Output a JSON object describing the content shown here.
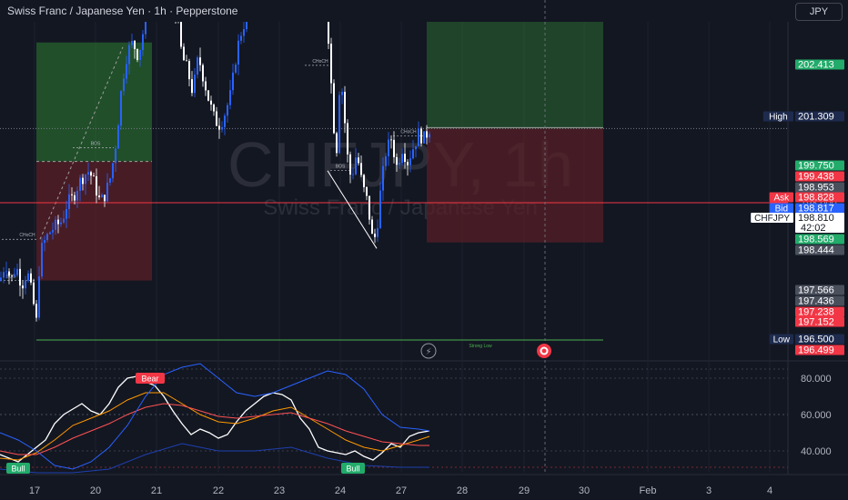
{
  "header": {
    "title": "Swiss Franc / Japanese Yen · 1h · Pepperstone",
    "currency_button": "JPY"
  },
  "watermark": {
    "symbol": "CHFJPY, 1h",
    "name": "Swiss Franc / Japanese Yen"
  },
  "colors": {
    "background": "#131722",
    "grid": "#1e222d",
    "up": "#2962ff",
    "down": "#ffffff",
    "profit_zone": "#1b5e20",
    "loss_zone": "#4a1a20",
    "red_label": "#f23645",
    "green_label": "#26a69a",
    "blue_label": "#2962ff",
    "grey_label": "#4a4f5c",
    "navy_label": "#1e2b4e"
  },
  "chart_data": [
    {
      "type": "candlestick",
      "title": "Swiss Franc / Japanese Yen · 1h · Pepperstone",
      "ylim": [
        195.65,
        203.35
      ],
      "y_ticks": [
        "203.000",
        "202.500",
        "202.000",
        "201.500",
        "201.000",
        "200.500",
        "198.000"
      ],
      "x_ticks": [
        "17",
        "20",
        "21",
        "22",
        "23",
        "24",
        "27",
        "28",
        "29",
        "30",
        "Feb",
        "3",
        "4"
      ],
      "price_path": [
        [
          0,
          197.15
        ],
        [
          6,
          197.35
        ],
        [
          12,
          197.15
        ],
        [
          18,
          197.3
        ],
        [
          24,
          197.1
        ],
        [
          30,
          197.25
        ],
        [
          36,
          196.95
        ],
        [
          40,
          196.7
        ],
        [
          44,
          197.45
        ],
        [
          50,
          197.6
        ],
        [
          56,
          197.7
        ],
        [
          62,
          197.75
        ],
        [
          68,
          197.8
        ],
        [
          74,
          198.0
        ],
        [
          80,
          198.05
        ],
        [
          86,
          198.2
        ],
        [
          92,
          198.3
        ],
        [
          98,
          198.35
        ],
        [
          104,
          198.2
        ],
        [
          110,
          198.0
        ],
        [
          116,
          198.1
        ],
        [
          122,
          198.3
        ],
        [
          128,
          198.7
        ],
        [
          134,
          199.3
        ],
        [
          140,
          199.65
        ],
        [
          146,
          199.75
        ],
        [
          152,
          199.6
        ],
        [
          158,
          199.9
        ],
        [
          164,
          200.25
        ],
        [
          170,
          200.35
        ],
        [
          176,
          200.3
        ],
        [
          182,
          200.2
        ],
        [
          188,
          200.25
        ],
        [
          194,
          200.05
        ],
        [
          200,
          199.6
        ],
        [
          206,
          199.45
        ],
        [
          212,
          199.2
        ],
        [
          218,
          199.6
        ],
        [
          224,
          199.35
        ],
        [
          230,
          199.1
        ],
        [
          236,
          198.9
        ],
        [
          242,
          198.85
        ],
        [
          248,
          199.0
        ],
        [
          254,
          199.2
        ],
        [
          260,
          199.65
        ],
        [
          266,
          199.9
        ],
        [
          272,
          200.05
        ],
        [
          278,
          200.15
        ],
        [
          284,
          200.3
        ],
        [
          290,
          200.45
        ],
        [
          296,
          200.55
        ],
        [
          302,
          200.7
        ],
        [
          308,
          200.8
        ],
        [
          314,
          200.9
        ],
        [
          320,
          200.85
        ],
        [
          326,
          200.95
        ],
        [
          332,
          201.0
        ],
        [
          335,
          201.3
        ],
        [
          338,
          200.5
        ],
        [
          342,
          200.0
        ],
        [
          346,
          200.25
        ],
        [
          350,
          199.95
        ],
        [
          356,
          200.35
        ],
        [
          362,
          199.7
        ],
        [
          366,
          198.9
        ],
        [
          370,
          198.6
        ],
        [
          374,
          199.45
        ],
        [
          378,
          199.0
        ],
        [
          382,
          198.5
        ],
        [
          386,
          198.25
        ],
        [
          392,
          198.55
        ],
        [
          398,
          198.2
        ],
        [
          404,
          198.0
        ],
        [
          410,
          197.55
        ],
        [
          414,
          197.7
        ],
        [
          418,
          198.1
        ],
        [
          424,
          198.55
        ],
        [
          430,
          198.7
        ],
        [
          436,
          198.4
        ],
        [
          442,
          198.6
        ],
        [
          448,
          198.45
        ],
        [
          454,
          198.6
        ],
        [
          460,
          198.75
        ],
        [
          466,
          198.7
        ],
        [
          472,
          198.81
        ]
      ],
      "levels": [
        {
          "label": "Weak High",
          "value": 201.309
        },
        {
          "label": "Strong Low",
          "value": 196.5
        }
      ],
      "structure_labels": [
        "BOS",
        "CHoCH",
        "BOS",
        "CHoCH",
        "BOS",
        "BOS",
        "CHoCH"
      ],
      "positions": [
        {
          "entry": 198.45,
          "target": 199.75,
          "stop": 197.15
        },
        {
          "entry": 198.81,
          "target": 202.413,
          "stop": 197.566
        }
      ],
      "price_labels": [
        {
          "tag": "",
          "value": "202.413",
          "kind": "green"
        },
        {
          "tag": "High",
          "value": "201.309",
          "kind": "navy"
        },
        {
          "tag": "",
          "value": "199.750",
          "kind": "green"
        },
        {
          "tag": "",
          "value": "199.438",
          "kind": "red"
        },
        {
          "tag": "",
          "value": "198.953",
          "kind": "grey"
        },
        {
          "tag": "Ask",
          "value": "198.828",
          "kind": "red"
        },
        {
          "tag": "Bid",
          "value": "198.817",
          "kind": "blue"
        },
        {
          "tag": "CHFJPY",
          "value": "198.810",
          "sub": "42:02",
          "kind": "white"
        },
        {
          "tag": "",
          "value": "198.569",
          "kind": "green"
        },
        {
          "tag": "",
          "value": "198.444",
          "kind": "grey"
        },
        {
          "tag": "",
          "value": "197.566",
          "kind": "grey"
        },
        {
          "tag": "",
          "value": "197.436",
          "kind": "grey"
        },
        {
          "tag": "",
          "value": "197.238",
          "kind": "red"
        },
        {
          "tag": "",
          "value": "197.152",
          "kind": "red"
        },
        {
          "tag": "Low",
          "value": "196.500",
          "kind": "navy"
        },
        {
          "tag": "",
          "value": "196.499",
          "kind": "red"
        }
      ]
    },
    {
      "type": "line",
      "ylim": [
        28,
        90
      ],
      "y_ticks": [
        "80.000",
        "60.000",
        "40.000"
      ],
      "labels": [
        {
          "text": "Bear",
          "x": 165,
          "kind": "red"
        },
        {
          "text": "Bull",
          "x": 20,
          "kind": "green"
        },
        {
          "text": "Bull",
          "x": 388,
          "kind": "green"
        }
      ],
      "series": [
        {
          "color": "#ffffff",
          "values": [
            [
              0,
              38
            ],
            [
              10,
              36
            ],
            [
              20,
              34
            ],
            [
              30,
              38
            ],
            [
              40,
              42
            ],
            [
              50,
              46
            ],
            [
              60,
              55
            ],
            [
              70,
              60
            ],
            [
              80,
              63
            ],
            [
              90,
              66
            ],
            [
              100,
              62
            ],
            [
              110,
              60
            ],
            [
              120,
              66
            ],
            [
              130,
              75
            ],
            [
              140,
              80
            ],
            [
              150,
              81
            ],
            [
              160,
              78
            ],
            [
              170,
              76
            ],
            [
              180,
              70
            ],
            [
              190,
              62
            ],
            [
              200,
              55
            ],
            [
              210,
              49
            ],
            [
              220,
              52
            ],
            [
              230,
              50
            ],
            [
              240,
              47
            ],
            [
              250,
              49
            ],
            [
              260,
              56
            ],
            [
              270,
              62
            ],
            [
              280,
              66
            ],
            [
              290,
              70
            ],
            [
              300,
              72
            ],
            [
              310,
              71
            ],
            [
              320,
              68
            ],
            [
              330,
              58
            ],
            [
              340,
              52
            ],
            [
              350,
              42
            ],
            [
              360,
              40
            ],
            [
              370,
              39
            ],
            [
              380,
              38
            ],
            [
              390,
              40
            ],
            [
              400,
              37
            ],
            [
              410,
              35
            ],
            [
              420,
              39
            ],
            [
              430,
              44
            ],
            [
              440,
              42
            ],
            [
              450,
              48
            ],
            [
              460,
              50
            ],
            [
              472,
              51
            ]
          ]
        },
        {
          "color": "#ff9800",
          "values": [
            [
              0,
              36
            ],
            [
              20,
              35
            ],
            [
              40,
              39
            ],
            [
              60,
              46
            ],
            [
              80,
              54
            ],
            [
              100,
              58
            ],
            [
              120,
              62
            ],
            [
              140,
              68
            ],
            [
              160,
              72
            ],
            [
              180,
              72
            ],
            [
              200,
              66
            ],
            [
              220,
              60
            ],
            [
              240,
              56
            ],
            [
              260,
              55
            ],
            [
              280,
              58
            ],
            [
              300,
              62
            ],
            [
              320,
              64
            ],
            [
              340,
              58
            ],
            [
              360,
              52
            ],
            [
              380,
              46
            ],
            [
              400,
              42
            ],
            [
              420,
              40
            ],
            [
              440,
              43
            ],
            [
              460,
              46
            ],
            [
              472,
              48
            ]
          ]
        },
        {
          "color": "#ff5252",
          "values": [
            [
              0,
              40
            ],
            [
              20,
              38
            ],
            [
              40,
              38
            ],
            [
              60,
              42
            ],
            [
              80,
              47
            ],
            [
              100,
              51
            ],
            [
              120,
              55
            ],
            [
              140,
              60
            ],
            [
              160,
              64
            ],
            [
              180,
              66
            ],
            [
              200,
              65
            ],
            [
              220,
              62
            ],
            [
              240,
              59
            ],
            [
              260,
              58
            ],
            [
              280,
              59
            ],
            [
              300,
              60
            ],
            [
              320,
              61
            ],
            [
              340,
              58
            ],
            [
              360,
              55
            ],
            [
              380,
              51
            ],
            [
              400,
              48
            ],
            [
              420,
              45
            ],
            [
              440,
              44
            ],
            [
              460,
              43
            ],
            [
              472,
              43
            ]
          ]
        },
        {
          "color": "#2962ff",
          "values": [
            [
              0,
              50
            ],
            [
              20,
              46
            ],
            [
              40,
              40
            ],
            [
              60,
              32
            ],
            [
              80,
              30
            ],
            [
              100,
              34
            ],
            [
              120,
              42
            ],
            [
              140,
              54
            ],
            [
              160,
              70
            ],
            [
              180,
              82
            ],
            [
              200,
              86
            ],
            [
              220,
              88
            ],
            [
              240,
              80
            ],
            [
              260,
              72
            ],
            [
              280,
              70
            ],
            [
              300,
              72
            ],
            [
              320,
              76
            ],
            [
              340,
              80
            ],
            [
              360,
              84
            ],
            [
              380,
              82
            ],
            [
              400,
              74
            ],
            [
              420,
              60
            ],
            [
              440,
              53
            ],
            [
              460,
              52
            ],
            [
              472,
              51
            ]
          ]
        },
        {
          "color": "#1e40af",
          "values": [
            [
              0,
              30
            ],
            [
              40,
              28
            ],
            [
              80,
              28
            ],
            [
              120,
              30
            ],
            [
              160,
              38
            ],
            [
              200,
              44
            ],
            [
              240,
              40
            ],
            [
              280,
              40
            ],
            [
              320,
              42
            ],
            [
              360,
              36
            ],
            [
              400,
              32
            ],
            [
              440,
              31
            ],
            [
              472,
              31
            ]
          ]
        }
      ]
    }
  ]
}
